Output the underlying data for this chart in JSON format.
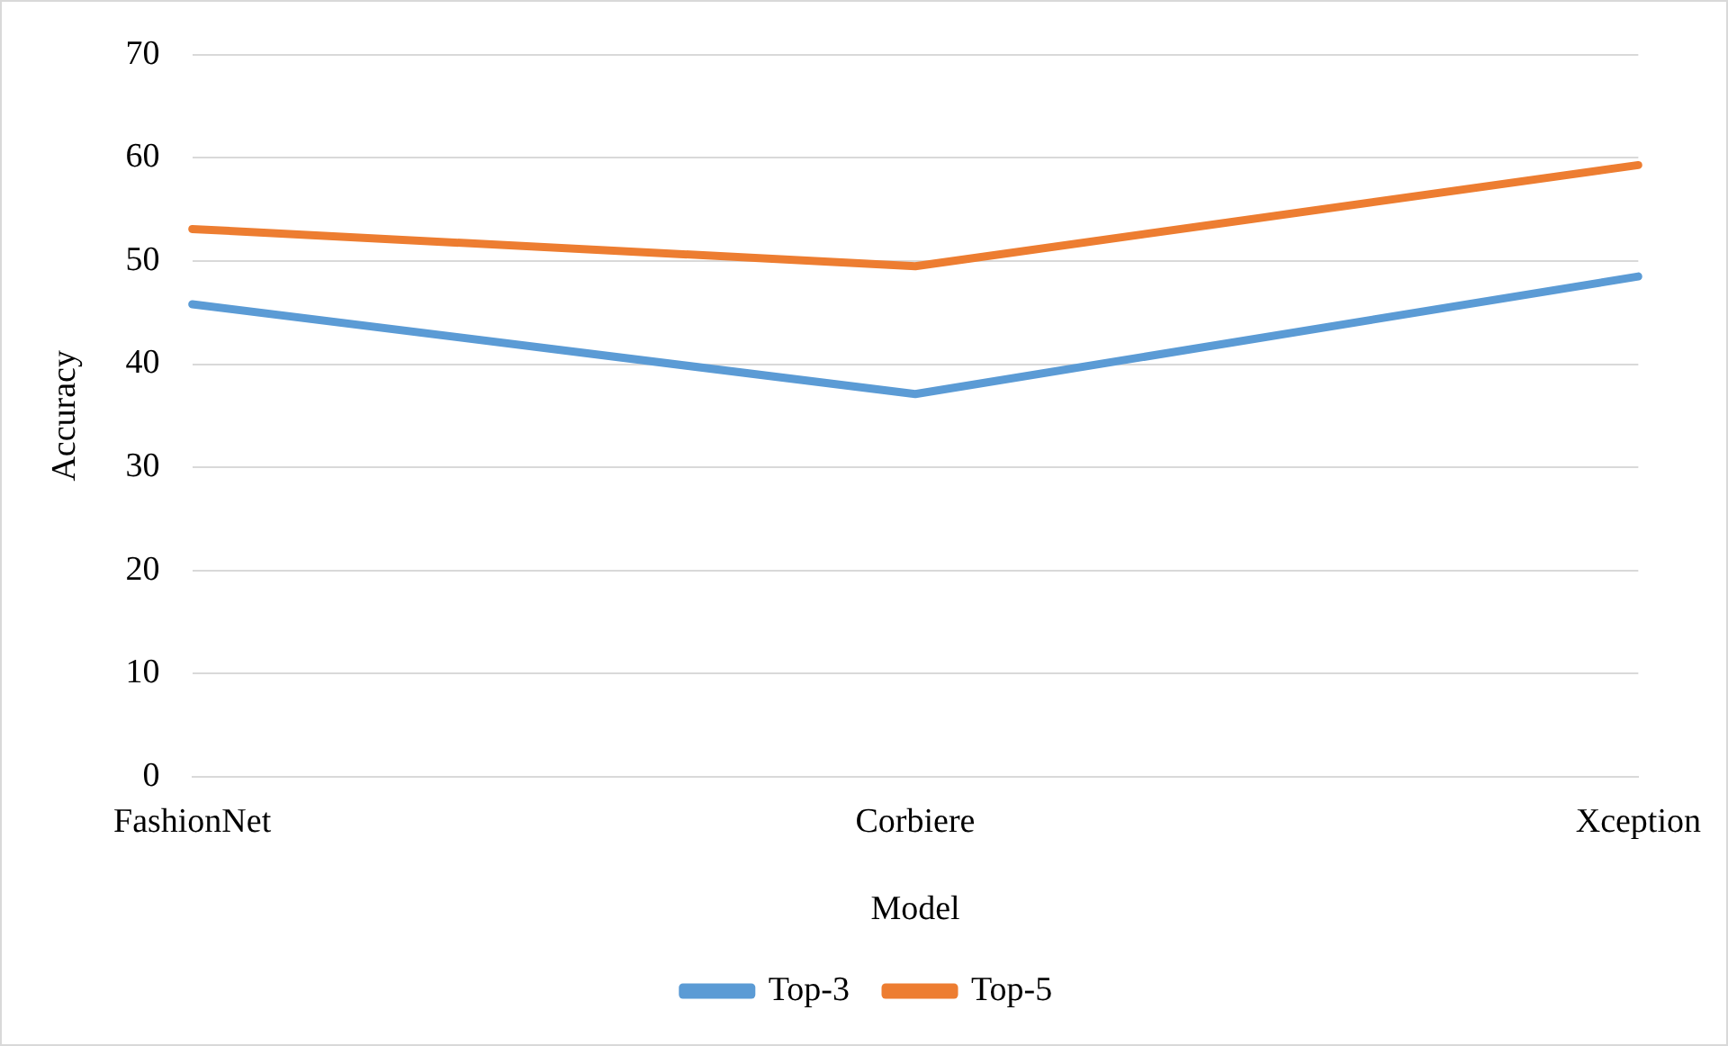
{
  "chart_data": {
    "type": "line",
    "xlabel": "Model",
    "ylabel": "Accuracy",
    "categories": [
      "FashionNet",
      "Corbiere",
      "Xception"
    ],
    "series": [
      {
        "name": "Top-3",
        "color": "#5b9bd5",
        "values": [
          45.8,
          37.1,
          48.5
        ]
      },
      {
        "name": "Top-5",
        "color": "#ed7d31",
        "values": [
          53.1,
          49.5,
          59.3
        ]
      }
    ],
    "ylim": [
      0,
      70
    ],
    "yticks": [
      0,
      10,
      20,
      30,
      40,
      50,
      60,
      70
    ],
    "grid": "y",
    "legend": "bottom",
    "marker": "none",
    "line_style": "solid"
  }
}
